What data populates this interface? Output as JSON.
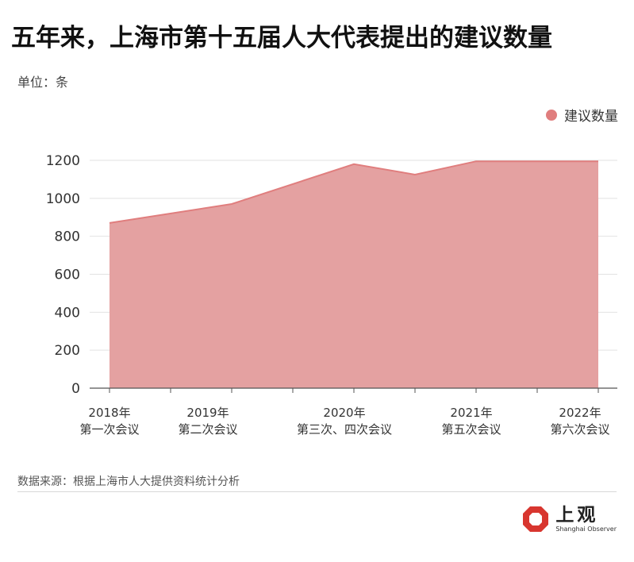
{
  "title": "五年来，上海市第十五届人大代表提出的建议数量",
  "unit_label": "单位：条",
  "source": "数据来源：根据上海市人大提供资料统计分析",
  "logo": {
    "name": "上观",
    "sub": "Shanghai Observer",
    "icon": "octagon-logo-icon"
  },
  "colors": {
    "fill": "#e4a1a1",
    "line": "#e07e7e",
    "legend": "#e07e7e",
    "grid": "#e2e2e2",
    "axis": "#555555"
  },
  "chart_data": {
    "type": "area",
    "categories": [
      "2018年|第一次会议",
      "2019年|第二次会议",
      "2020年|第三次、四次会议",
      "2021年|第五次会议",
      "2022年|第六次会议"
    ],
    "x": [
      0,
      1,
      2,
      2.5,
      3,
      4
    ],
    "series": [
      {
        "name": "建议数量",
        "values": [
          870,
          970,
          1180,
          1125,
          1195,
          1195
        ]
      }
    ],
    "ylim": [
      0,
      1200
    ],
    "yticks": [
      0,
      200,
      400,
      600,
      800,
      1000,
      1200
    ],
    "legend": "top-right",
    "grid": true
  }
}
